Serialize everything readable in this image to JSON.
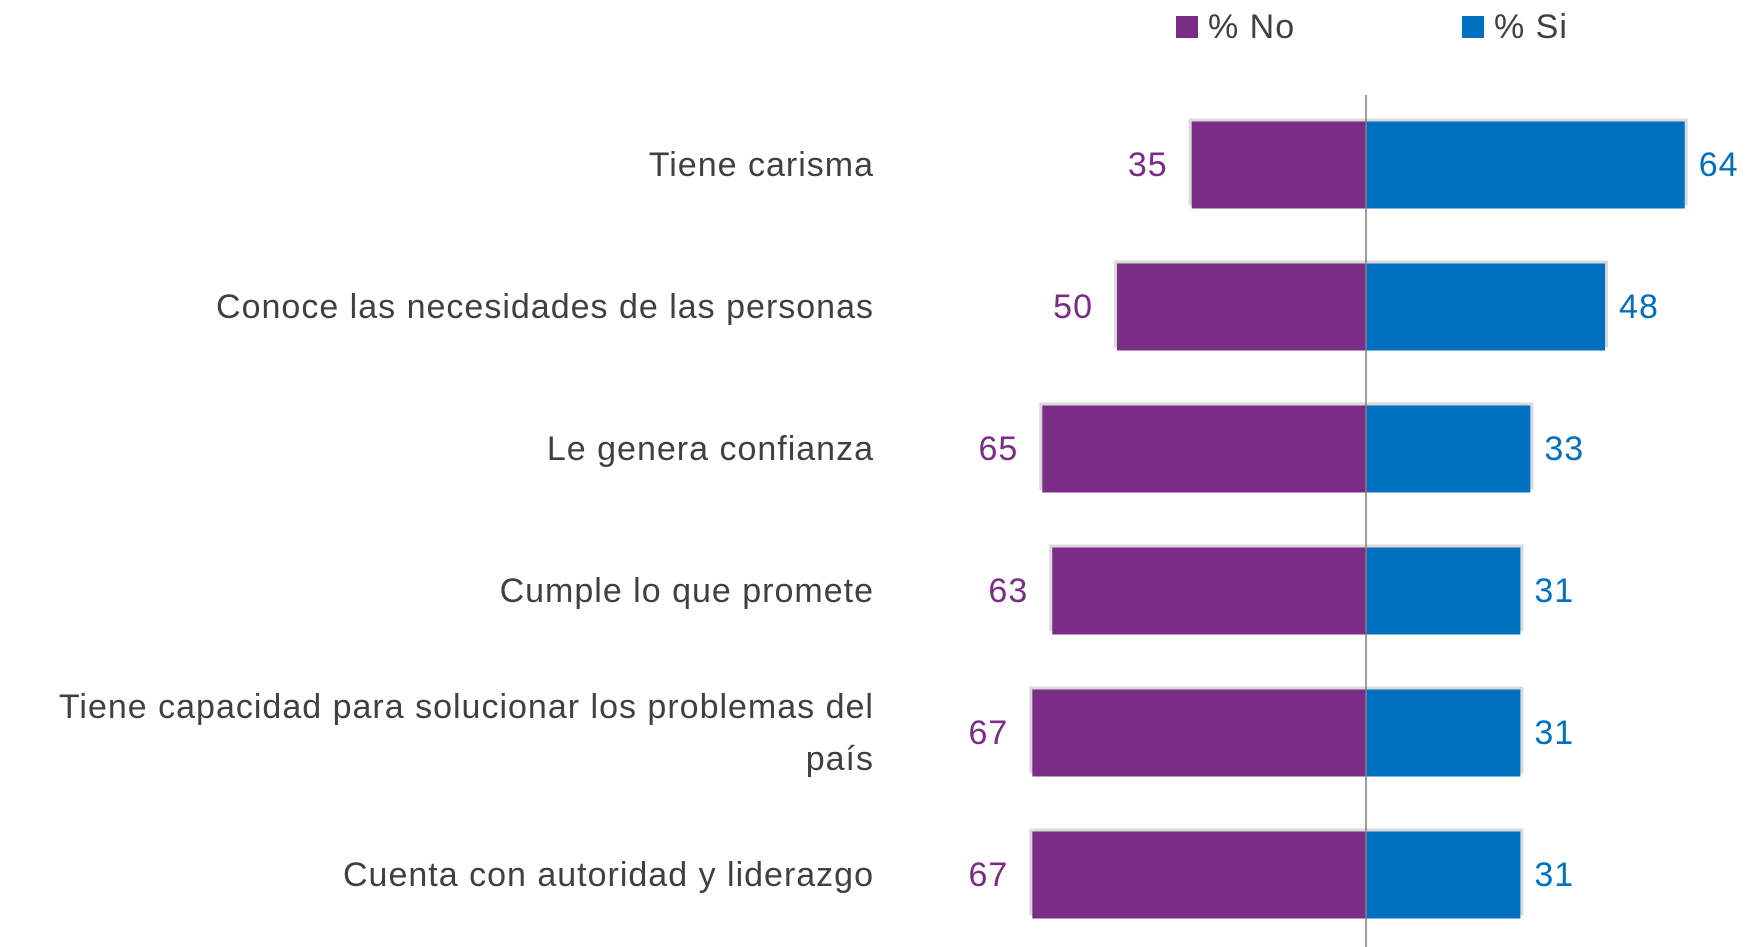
{
  "chart_data": {
    "type": "bar",
    "categories": [
      "Tiene carisma",
      "Conoce las necesidades de las personas",
      "Le genera confianza",
      "Cumple lo que promete",
      "Tiene capacidad para solucionar los problemas del país",
      "Cuenta con autoridad y liderazgo"
    ],
    "series": [
      {
        "name": "% No",
        "color": "#7b2c87",
        "values": [
          35,
          50,
          65,
          63,
          67,
          67
        ]
      },
      {
        "name": "% Si",
        "color": "#0070c0",
        "values": [
          64,
          48,
          33,
          31,
          31,
          31
        ]
      }
    ]
  }
}
